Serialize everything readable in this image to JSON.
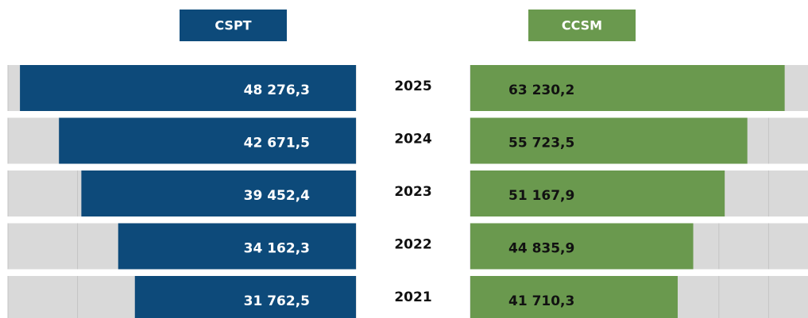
{
  "chart_data": {
    "type": "bar",
    "orientation": "horizontal",
    "grid": true,
    "categories": [
      "2025",
      "2024",
      "2023",
      "2022",
      "2021"
    ],
    "series": [
      {
        "name": "CSPT",
        "color": "#0d4a7a",
        "reversed": true,
        "values": [
          48276.3,
          42671.5,
          39452.4,
          34162.3,
          31762.5
        ],
        "value_labels": [
          "48 276,3",
          "42 671,5",
          "39 452,4",
          "34 162,3",
          "31 762,5"
        ],
        "xlim": [
          0,
          50000
        ],
        "xticks": [
          0,
          10000,
          20000,
          30000,
          40000,
          50000
        ]
      },
      {
        "name": "CCSM",
        "color": "#6a994e",
        "reversed": false,
        "values": [
          63230.2,
          55723.5,
          51167.9,
          44835.9,
          41710.3
        ],
        "value_labels": [
          "63 230,2",
          "55 723,5",
          "51 167,9",
          "44 835,9",
          "41 710,3"
        ],
        "xlim": [
          0,
          70000
        ],
        "xticks": [
          0,
          10000,
          20000,
          30000,
          40000,
          50000,
          60000,
          70000
        ]
      }
    ]
  }
}
